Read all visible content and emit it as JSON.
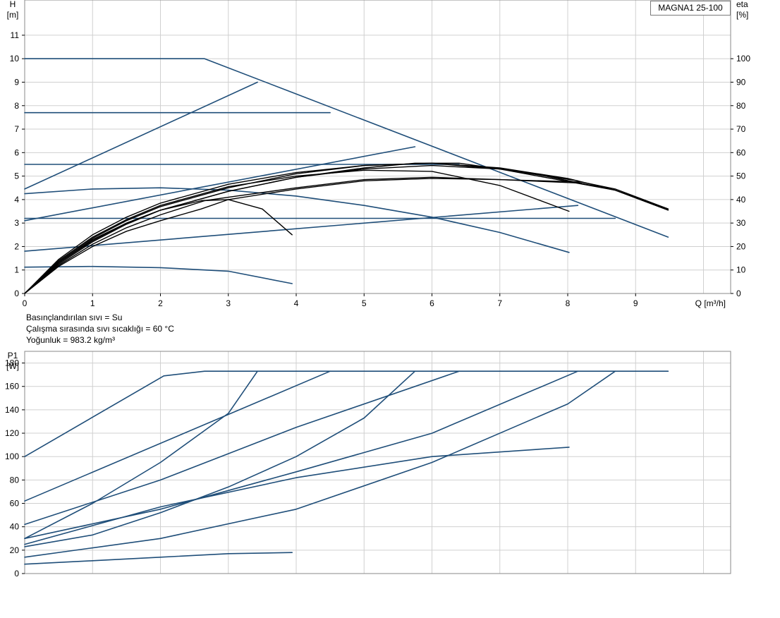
{
  "model": "MAGNA1 25-100",
  "info_lines": [
    "Basınçlandırılan sıvı = Su",
    "Çalışma sırasında sıvı sıcaklığı = 60 °C",
    "Yoğunluk = 983.2 kg/m³"
  ],
  "colors": {
    "blue": "#1f4e79",
    "black": "#000000",
    "grid": "#d0d0d0",
    "frame": "#8a8a8a"
  },
  "chart_data": [
    {
      "type": "line",
      "id": "head",
      "ylabel": "H\n[m]",
      "y2label": "eta\n[%]",
      "xlabel": "Q [m³/h]",
      "xlim": [
        0,
        10.4
      ],
      "ylim": [
        0,
        12.5
      ],
      "y2lim": [
        0,
        125
      ],
      "x_ticks": [
        0,
        1,
        2,
        3,
        4,
        5,
        6,
        7,
        8,
        9
      ],
      "y_ticks": [
        0,
        1,
        2,
        3,
        4,
        5,
        6,
        7,
        8,
        9,
        10,
        11
      ],
      "y2_ticks": [
        0,
        10,
        20,
        30,
        40,
        50,
        60,
        70,
        80,
        90,
        100
      ],
      "grid": true,
      "series": [
        {
          "color": "blue",
          "points": [
            [
              0,
              10
            ],
            [
              2.65,
              10
            ],
            [
              9.48,
              2.4
            ]
          ]
        },
        {
          "color": "blue",
          "points": [
            [
              0,
              7.7
            ],
            [
              4.5,
              7.7
            ]
          ]
        },
        {
          "color": "blue",
          "points": [
            [
              0,
              5.5
            ],
            [
              6.4,
              5.5
            ]
          ]
        },
        {
          "color": "blue",
          "points": [
            [
              0,
              3.2
            ],
            [
              8.7,
              3.2
            ]
          ]
        },
        {
          "color": "blue",
          "points": [
            [
              0,
              4.45
            ],
            [
              3.43,
              9.0
            ]
          ]
        },
        {
          "color": "blue",
          "points": [
            [
              0,
              3.1
            ],
            [
              5.75,
              6.25
            ]
          ]
        },
        {
          "color": "blue",
          "points": [
            [
              0,
              1.8
            ],
            [
              8.15,
              3.75
            ]
          ]
        },
        {
          "color": "blue",
          "points": [
            [
              0,
              4.25
            ],
            [
              1,
              4.45
            ],
            [
              2,
              4.5
            ],
            [
              3,
              4.4
            ],
            [
              4,
              4.15
            ],
            [
              5,
              3.75
            ],
            [
              6,
              3.25
            ],
            [
              7,
              2.6
            ],
            [
              8.02,
              1.75
            ]
          ]
        },
        {
          "color": "blue",
          "points": [
            [
              0,
              1.12
            ],
            [
              1,
              1.15
            ],
            [
              2,
              1.1
            ],
            [
              3,
              0.95
            ],
            [
              3.94,
              0.42
            ]
          ]
        },
        {
          "color": "black",
          "points": [
            [
              0,
              0
            ],
            [
              0.5,
              1.2
            ],
            [
              1,
              2.1
            ],
            [
              1.5,
              2.8
            ],
            [
              2,
              3.35
            ],
            [
              2.65,
              3.95
            ],
            [
              3,
              4.1
            ],
            [
              4,
              4.5
            ],
            [
              5,
              4.85
            ],
            [
              6,
              4.95
            ],
            [
              7,
              4.85
            ],
            [
              8.2,
              4.7
            ]
          ]
        },
        {
          "color": "black",
          "points": [
            [
              0,
              0
            ],
            [
              0.5,
              1.25
            ],
            [
              1,
              2.2
            ],
            [
              1.5,
              2.95
            ],
            [
              2,
              3.55
            ],
            [
              3,
              4.35
            ],
            [
              4,
              4.95
            ],
            [
              5,
              5.3
            ],
            [
              6,
              5.45
            ],
            [
              7,
              5.3
            ],
            [
              8.7,
              4.4
            ],
            [
              9.48,
              3.55
            ]
          ]
        },
        {
          "color": "black",
          "points": [
            [
              0,
              0
            ],
            [
              0.5,
              1.35
            ],
            [
              1,
              2.35
            ],
            [
              1.5,
              3.1
            ],
            [
              2,
              3.7
            ],
            [
              3,
              4.5
            ],
            [
              4,
              5.1
            ],
            [
              5,
              5.45
            ],
            [
              6,
              5.55
            ],
            [
              7,
              5.35
            ],
            [
              8,
              4.9
            ],
            [
              8.7,
              4.4
            ],
            [
              9.48,
              3.55
            ]
          ]
        },
        {
          "color": "black",
          "points": [
            [
              0,
              0
            ],
            [
              0.5,
              1.45
            ],
            [
              1,
              2.5
            ],
            [
              1.5,
              3.25
            ],
            [
              2,
              3.85
            ],
            [
              3,
              4.65
            ],
            [
              4,
              5.15
            ],
            [
              5,
              5.45
            ],
            [
              6,
              5.55
            ],
            [
              7,
              5.3
            ],
            [
              8.15,
              4.8
            ]
          ]
        },
        {
          "color": "black",
          "points": [
            [
              0,
              0
            ],
            [
              0.5,
              1.4
            ],
            [
              1,
              2.4
            ],
            [
              1.5,
              3.15
            ],
            [
              2,
              3.75
            ],
            [
              3,
              4.55
            ],
            [
              4,
              5.0
            ],
            [
              5,
              5.25
            ],
            [
              6,
              5.2
            ],
            [
              7,
              4.6
            ],
            [
              8.02,
              3.5
            ]
          ]
        },
        {
          "color": "black",
          "points": [
            [
              0,
              0
            ],
            [
              0.5,
              1.3
            ],
            [
              1,
              2.25
            ],
            [
              1.5,
              3.0
            ],
            [
              2,
              3.55
            ],
            [
              3,
              4.35
            ],
            [
              4,
              4.95
            ],
            [
              5,
              5.35
            ],
            [
              5.75,
              5.55
            ],
            [
              6.4,
              5.55
            ],
            [
              7.5,
              5.1
            ],
            [
              8.7,
              4.4
            ],
            [
              9.48,
              3.6
            ]
          ]
        },
        {
          "color": "black",
          "points": [
            [
              0,
              0
            ],
            [
              0.5,
              1.15
            ],
            [
              1,
              2.0
            ],
            [
              1.5,
              2.65
            ],
            [
              2,
              3.1
            ],
            [
              2.6,
              3.6
            ],
            [
              3,
              4.0
            ],
            [
              4,
              4.45
            ],
            [
              5,
              4.8
            ],
            [
              6,
              4.9
            ],
            [
              7,
              4.85
            ],
            [
              8.2,
              4.75
            ],
            [
              8.7,
              4.45
            ],
            [
              9.48,
              3.6
            ]
          ]
        },
        {
          "color": "black",
          "points": [
            [
              0,
              0
            ],
            [
              0.5,
              1.3
            ],
            [
              1,
              2.3
            ],
            [
              1.5,
              3.0
            ],
            [
              2,
              3.55
            ],
            [
              2.6,
              3.95
            ],
            [
              3,
              4.0
            ],
            [
              3.5,
              3.6
            ],
            [
              3.94,
              2.5
            ]
          ]
        }
      ]
    },
    {
      "type": "line",
      "id": "power",
      "ylabel": "P1\n[W]",
      "xlim": [
        0,
        10.4
      ],
      "ylim": [
        0,
        190
      ],
      "y_ticks": [
        0,
        20,
        40,
        60,
        80,
        100,
        120,
        140,
        160,
        180
      ],
      "grid": true,
      "series": [
        {
          "color": "blue",
          "points": [
            [
              0,
              100
            ],
            [
              2.05,
              169
            ],
            [
              2.65,
              173
            ],
            [
              9.48,
              173
            ]
          ]
        },
        {
          "color": "blue",
          "points": [
            [
              0,
              62
            ],
            [
              4.5,
              173
            ]
          ]
        },
        {
          "color": "blue",
          "points": [
            [
              0,
              30
            ],
            [
              1,
              60
            ],
            [
              2,
              95
            ],
            [
              3,
              137
            ],
            [
              3.43,
              173
            ]
          ]
        },
        {
          "color": "blue",
          "points": [
            [
              0,
              42
            ],
            [
              2,
              80
            ],
            [
              4,
              125
            ],
            [
              6.4,
              173
            ]
          ]
        },
        {
          "color": "blue",
          "points": [
            [
              0,
              23
            ],
            [
              1,
              33
            ],
            [
              2,
              52
            ],
            [
              3,
              74
            ],
            [
              4,
              100
            ],
            [
              5,
              133
            ],
            [
              5.75,
              173
            ]
          ]
        },
        {
          "color": "blue",
          "points": [
            [
              0,
              30
            ],
            [
              2,
              55
            ],
            [
              4,
              87
            ],
            [
              6,
              120
            ],
            [
              8.15,
              173
            ]
          ]
        },
        {
          "color": "blue",
          "points": [
            [
              0,
              14
            ],
            [
              2,
              30
            ],
            [
              4,
              55
            ],
            [
              6,
              95
            ],
            [
              8,
              145
            ],
            [
              8.7,
              173
            ]
          ]
        },
        {
          "color": "blue",
          "points": [
            [
              0,
              25
            ],
            [
              2,
              57
            ],
            [
              4,
              82
            ],
            [
              6,
              100
            ],
            [
              8.02,
              108
            ]
          ]
        },
        {
          "color": "blue",
          "points": [
            [
              0,
              8
            ],
            [
              1,
              11
            ],
            [
              2,
              14
            ],
            [
              3,
              17
            ],
            [
              3.94,
              18
            ]
          ]
        }
      ]
    }
  ]
}
